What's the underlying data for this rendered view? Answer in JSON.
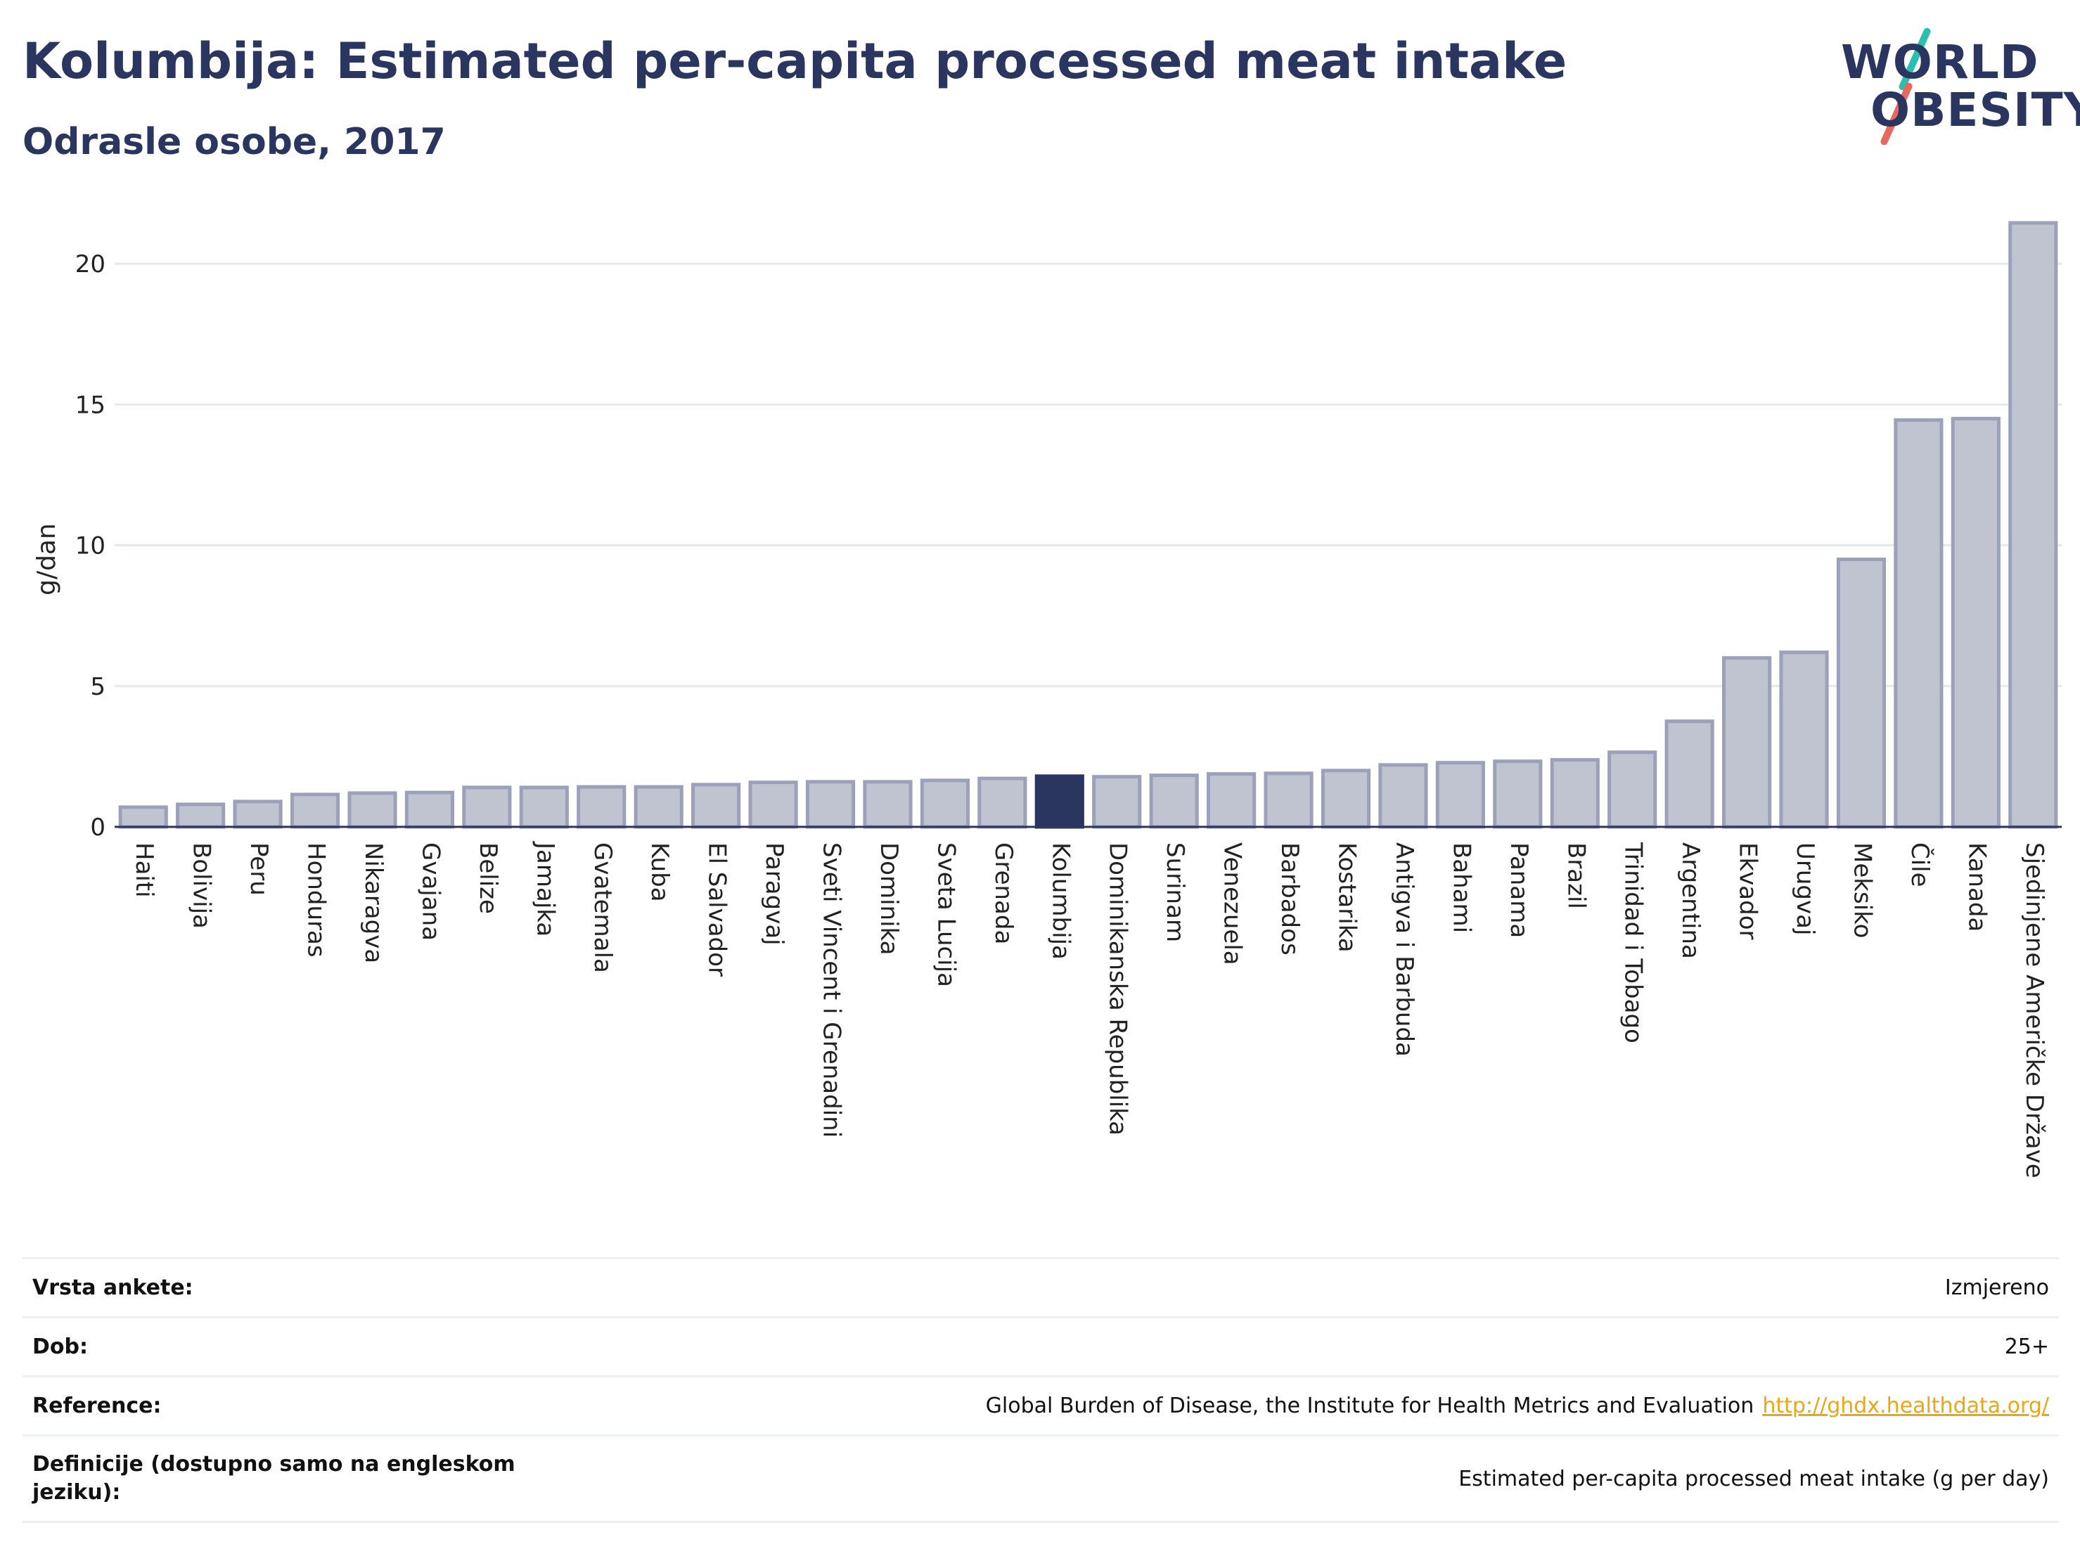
{
  "header": {
    "title": "Kolumbija: Estimated per-capita processed meat intake",
    "subtitle": "Odrasle osobe, 2017",
    "logo_line1": "WORLD",
    "logo_line2": "OBESITY"
  },
  "colors": {
    "title": "#2a3560",
    "bar_fill": "#c0c4d1",
    "bar_stroke": "#9aa1b9",
    "highlight": "#2a3560",
    "grid": "#e6e8ef",
    "link": "#e8a71a"
  },
  "chart_data": {
    "type": "bar",
    "title": "Kolumbija: Estimated per-capita processed meat intake",
    "subtitle": "Odrasle osobe, 2017",
    "ylabel": "g/dan",
    "xlabel": "",
    "ylim": [
      0,
      22
    ],
    "yticks": [
      0,
      5,
      10,
      15,
      20
    ],
    "grid": true,
    "highlight": "Kolumbija",
    "categories": [
      "Haiti",
      "Bolivija",
      "Peru",
      "Honduras",
      "Nikaragva",
      "Gvajana",
      "Belize",
      "Jamajka",
      "Gvatemala",
      "Kuba",
      "El Salvador",
      "Paragvaj",
      "Sveti Vincent i Grenadini",
      "Dominika",
      "Sveta Lucija",
      "Grenada",
      "Kolumbija",
      "Dominikanska Republika",
      "Surinam",
      "Venezuela",
      "Barbados",
      "Kostarika",
      "Antigva i Barbuda",
      "Bahami",
      "Panama",
      "Brazil",
      "Trinidad i Tobago",
      "Argentina",
      "Ekvador",
      "Urugvaj",
      "Meksiko",
      "Čile",
      "Kanada",
      "Sjedinjene Američke Države"
    ],
    "values": [
      0.7,
      0.8,
      0.9,
      1.15,
      1.2,
      1.22,
      1.4,
      1.4,
      1.42,
      1.42,
      1.5,
      1.58,
      1.6,
      1.6,
      1.65,
      1.72,
      1.8,
      1.78,
      1.83,
      1.88,
      1.9,
      2.0,
      2.2,
      2.28,
      2.33,
      2.38,
      2.65,
      3.75,
      6.0,
      6.2,
      9.5,
      14.45,
      14.5,
      21.45
    ]
  },
  "meta": {
    "rows": [
      {
        "label": "Vrsta ankete:",
        "value": "Izmjereno"
      },
      {
        "label": "Dob:",
        "value": "25+"
      },
      {
        "label": "Reference:",
        "value": "Global Burden of Disease, the Institute for Health Metrics and Evaluation",
        "link": "http://ghdx.healthdata.org/"
      },
      {
        "label": "Definicije (dostupno samo na engleskom jeziku):",
        "value": "Estimated per-capita processed meat intake (g per day)"
      }
    ]
  }
}
